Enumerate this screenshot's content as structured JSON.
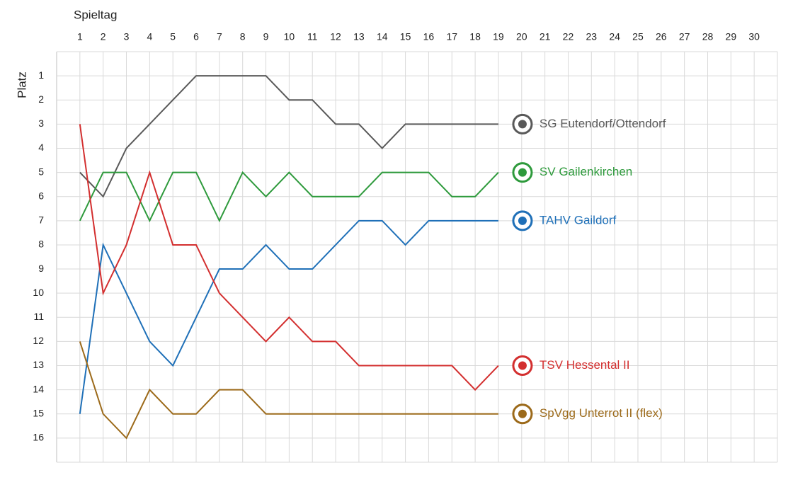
{
  "chart_data": {
    "type": "line",
    "x_label": "Spieltag",
    "y_label": "Platz",
    "x": [
      1,
      2,
      3,
      4,
      5,
      6,
      7,
      8,
      9,
      10,
      11,
      12,
      13,
      14,
      15,
      16,
      17,
      18,
      19
    ],
    "xlim": [
      0,
      31
    ],
    "xticks": [
      1,
      2,
      3,
      4,
      5,
      6,
      7,
      8,
      9,
      10,
      11,
      12,
      13,
      14,
      15,
      16,
      17,
      18,
      19,
      20,
      21,
      22,
      23,
      24,
      25,
      26,
      27,
      28,
      29,
      30
    ],
    "ylim": [
      17,
      0
    ],
    "yticks": [
      1,
      2,
      3,
      4,
      5,
      6,
      7,
      8,
      9,
      10,
      11,
      12,
      13,
      14,
      15,
      16
    ],
    "y_reversed": true,
    "grid": true,
    "series": [
      {
        "name": "SG Eutendorf/Ottendorf",
        "color": "#595959",
        "values": [
          5,
          6,
          4,
          3,
          2,
          1,
          1,
          1,
          1,
          2,
          2,
          3,
          3,
          4,
          3,
          3,
          3,
          3,
          3
        ]
      },
      {
        "name": "SV Gailenkirchen",
        "color": "#2e9a3c",
        "values": [
          7,
          5,
          5,
          7,
          5,
          5,
          7,
          5,
          6,
          5,
          6,
          6,
          6,
          5,
          5,
          5,
          6,
          6,
          5
        ]
      },
      {
        "name": "TAHV Gaildorf",
        "color": "#1f70b8",
        "values": [
          15,
          8,
          10,
          12,
          13,
          11,
          9,
          9,
          8,
          9,
          9,
          8,
          7,
          7,
          8,
          7,
          7,
          7,
          7
        ]
      },
      {
        "name": "TSV Hessental II",
        "color": "#d32f2f",
        "values": [
          3,
          10,
          8,
          5,
          8,
          8,
          10,
          11,
          12,
          11,
          12,
          12,
          13,
          13,
          13,
          13,
          13,
          14,
          13
        ]
      },
      {
        "name": "SpVgg Unterrot II (flex)",
        "color": "#9c6a1a",
        "values": [
          12,
          15,
          16,
          14,
          15,
          15,
          14,
          14,
          15,
          15,
          15,
          15,
          15,
          15,
          15,
          15,
          15,
          15,
          15
        ]
      }
    ]
  }
}
